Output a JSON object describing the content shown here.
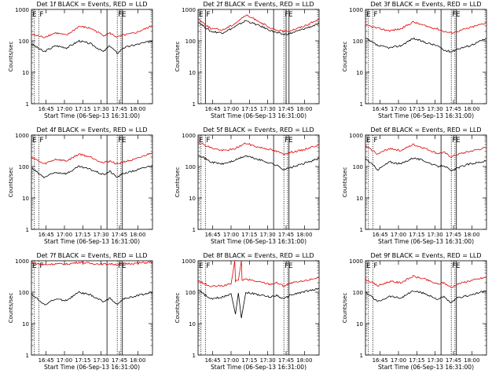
{
  "figure": {
    "xlabel": "Start Time (06-Sep-13 16:31:00)",
    "ylabel": "Counts/sec",
    "x_tick_labels": [
      "16:45",
      "17:00",
      "17:15",
      "17:30",
      "17:45",
      "18:00"
    ],
    "y_tick_labels": [
      "1",
      "10",
      "100",
      "1000"
    ],
    "colors": {
      "events": "#000000",
      "lld": "#e00000"
    }
  },
  "chart_data": [
    {
      "type": "line",
      "title": "Det 1f BLACK = Events, RED = LLD",
      "xlabel": "Start Time (06-Sep-13 16:31:00)",
      "ylabel": "Counts/sec",
      "xlim": [
        16.55,
        18.2
      ],
      "ylim": [
        1,
        1000
      ],
      "yscale": "log",
      "series": [
        {
          "name": "Events",
          "color": "#000000",
          "x": [
            16.55,
            16.72,
            16.88,
            17.03,
            17.2,
            17.36,
            17.53,
            17.62,
            17.72,
            17.8,
            17.97,
            18.2
          ],
          "y": [
            80,
            45,
            70,
            60,
            100,
            80,
            45,
            70,
            40,
            60,
            75,
            100
          ]
        },
        {
          "name": "LLD",
          "color": "#e00000",
          "x": [
            16.55,
            16.72,
            16.88,
            17.03,
            17.2,
            17.36,
            17.53,
            17.62,
            17.72,
            17.8,
            17.97,
            18.2
          ],
          "y": [
            160,
            130,
            180,
            150,
            290,
            250,
            150,
            175,
            130,
            150,
            180,
            300
          ]
        }
      ],
      "annotations": [
        {
          "label": "E",
          "x": 16.55
        },
        {
          "label": "F",
          "x": 16.65
        },
        {
          "label": "F",
          "x": 17.72
        },
        {
          "label": "E",
          "x": 17.77
        }
      ],
      "vlines_solid": [
        17.58,
        17.79
      ],
      "vlines_dotted": [
        16.59,
        16.65,
        17.72,
        17.77
      ]
    },
    {
      "type": "line",
      "title": "Det 2f BLACK = Events, RED = LLD",
      "xlabel": "Start Time (06-Sep-13 16:31:00)",
      "ylabel": "Counts/sec",
      "xlim": [
        16.55,
        18.2
      ],
      "ylim": [
        1,
        1000
      ],
      "yscale": "log",
      "series": [
        {
          "name": "Events",
          "color": "#000000",
          "x": [
            16.55,
            16.72,
            16.88,
            17.03,
            17.2,
            17.36,
            17.53,
            17.62,
            17.72,
            17.8,
            17.97,
            18.2
          ],
          "y": [
            400,
            200,
            180,
            260,
            440,
            320,
            220,
            180,
            160,
            170,
            230,
            350
          ]
        },
        {
          "name": "LLD",
          "color": "#e00000",
          "x": [
            16.55,
            16.72,
            16.88,
            17.03,
            17.2,
            17.36,
            17.53,
            17.62,
            17.72,
            17.8,
            17.97,
            18.2
          ],
          "y": [
            500,
            250,
            220,
            330,
            650,
            450,
            250,
            220,
            200,
            210,
            280,
            480
          ]
        }
      ],
      "annotations": [
        {
          "label": "E",
          "x": 16.55
        },
        {
          "label": "F",
          "x": 16.65
        },
        {
          "label": "F",
          "x": 17.72
        },
        {
          "label": "E",
          "x": 17.77
        }
      ],
      "vlines_solid": [
        16.65,
        17.58,
        17.75,
        17.79
      ],
      "vlines_dotted": [
        16.59,
        17.72
      ]
    },
    {
      "type": "line",
      "title": "Det 3f BLACK = Events, RED = LLD",
      "xlabel": "Start Time (06-Sep-13 16:31:00)",
      "ylabel": "Counts/sec",
      "xlim": [
        16.55,
        18.2
      ],
      "ylim": [
        1,
        1000
      ],
      "yscale": "log",
      "series": [
        {
          "name": "Events",
          "color": "#000000",
          "x": [
            16.55,
            16.72,
            16.88,
            17.03,
            17.2,
            17.36,
            17.53,
            17.62,
            17.72,
            17.8,
            17.97,
            18.2
          ],
          "y": [
            120,
            70,
            60,
            70,
            120,
            90,
            70,
            50,
            45,
            55,
            70,
            120
          ]
        },
        {
          "name": "LLD",
          "color": "#e00000",
          "x": [
            16.55,
            16.72,
            16.88,
            17.03,
            17.2,
            17.36,
            17.53,
            17.62,
            17.72,
            17.8,
            17.97,
            18.2
          ],
          "y": [
            320,
            250,
            210,
            240,
            400,
            300,
            240,
            200,
            180,
            200,
            260,
            380
          ]
        }
      ],
      "annotations": [
        {
          "label": "E",
          "x": 16.55
        },
        {
          "label": "F",
          "x": 16.65
        },
        {
          "label": "F",
          "x": 17.72
        },
        {
          "label": "E",
          "x": 17.77
        }
      ],
      "vlines_solid": [
        17.58,
        17.79
      ],
      "vlines_dotted": [
        16.59,
        16.65,
        17.72,
        17.77
      ]
    },
    {
      "type": "line",
      "title": "Det 4f BLACK = Events, RED = LLD",
      "xlabel": "Start Time (06-Sep-13 16:31:00)",
      "ylabel": "Counts/sec",
      "xlim": [
        16.55,
        18.2
      ],
      "ylim": [
        1,
        1000
      ],
      "yscale": "log",
      "series": [
        {
          "name": "Events",
          "color": "#000000",
          "x": [
            16.55,
            16.72,
            16.88,
            17.03,
            17.2,
            17.36,
            17.53,
            17.62,
            17.72,
            17.8,
            17.97,
            18.2
          ],
          "y": [
            90,
            45,
            65,
            60,
            100,
            80,
            55,
            70,
            45,
            60,
            75,
            110
          ]
        },
        {
          "name": "LLD",
          "color": "#e00000",
          "x": [
            16.55,
            16.72,
            16.88,
            17.03,
            17.2,
            17.36,
            17.53,
            17.62,
            17.72,
            17.8,
            17.97,
            18.2
          ],
          "y": [
            200,
            120,
            170,
            150,
            250,
            200,
            130,
            150,
            120,
            140,
            170,
            280
          ]
        }
      ],
      "annotations": [
        {
          "label": "E",
          "x": 16.55
        },
        {
          "label": "F",
          "x": 16.65
        },
        {
          "label": "F",
          "x": 17.72
        },
        {
          "label": "E",
          "x": 17.77
        }
      ],
      "vlines_solid": [
        17.58,
        17.79
      ],
      "vlines_dotted": [
        16.59,
        16.65,
        17.72,
        17.77
      ]
    },
    {
      "type": "line",
      "title": "Det 5f BLACK = Events, RED = LLD",
      "xlabel": "Start Time (06-Sep-13 16:31:00)",
      "ylabel": "Counts/sec",
      "xlim": [
        16.55,
        18.2
      ],
      "ylim": [
        1,
        1000
      ],
      "yscale": "log",
      "series": [
        {
          "name": "Events",
          "color": "#000000",
          "x": [
            16.55,
            16.72,
            16.88,
            17.03,
            17.2,
            17.36,
            17.53,
            17.62,
            17.72,
            17.8,
            17.97,
            18.2
          ],
          "y": [
            250,
            140,
            120,
            150,
            220,
            170,
            130,
            110,
            80,
            90,
            120,
            180
          ]
        },
        {
          "name": "LLD",
          "color": "#e00000",
          "x": [
            16.55,
            16.72,
            16.88,
            17.03,
            17.2,
            17.36,
            17.53,
            17.62,
            17.72,
            17.8,
            17.97,
            18.2
          ],
          "y": [
            600,
            400,
            320,
            350,
            550,
            420,
            350,
            300,
            250,
            280,
            330,
            500
          ]
        }
      ],
      "annotations": [
        {
          "label": "E",
          "x": 16.55
        },
        {
          "label": "F",
          "x": 16.65
        },
        {
          "label": "F",
          "x": 17.72
        },
        {
          "label": "E",
          "x": 17.77
        }
      ],
      "vlines_solid": [
        17.58,
        17.79
      ],
      "vlines_dotted": [
        16.59,
        16.65,
        17.72,
        17.77
      ]
    },
    {
      "type": "line",
      "title": "Det 6f BLACK = Events, RED = LLD",
      "xlabel": "Start Time (06-Sep-13 16:31:00)",
      "ylabel": "Counts/sec",
      "xlim": [
        16.55,
        18.2
      ],
      "ylim": [
        1,
        1000
      ],
      "yscale": "log",
      "series": [
        {
          "name": "Events",
          "color": "#000000",
          "x": [
            16.55,
            16.72,
            16.88,
            17.03,
            17.2,
            17.36,
            17.53,
            17.62,
            17.72,
            17.8,
            17.97,
            18.2
          ],
          "y": [
            180,
            80,
            140,
            120,
            190,
            150,
            100,
            110,
            70,
            90,
            120,
            150
          ]
        },
        {
          "name": "LLD",
          "color": "#e00000",
          "x": [
            16.55,
            16.72,
            16.88,
            17.03,
            17.2,
            17.36,
            17.53,
            17.62,
            17.72,
            17.8,
            17.97,
            18.2
          ],
          "y": [
            450,
            250,
            380,
            320,
            500,
            380,
            260,
            280,
            200,
            240,
            300,
            400
          ]
        }
      ],
      "annotations": [
        {
          "label": "E",
          "x": 16.55
        },
        {
          "label": "F",
          "x": 16.65
        },
        {
          "label": "F",
          "x": 17.72
        },
        {
          "label": "E",
          "x": 17.77
        }
      ],
      "vlines_solid": [
        17.58,
        17.79
      ],
      "vlines_dotted": [
        16.59,
        16.65,
        17.72,
        17.77
      ]
    },
    {
      "type": "line",
      "title": "Det 7f BLACK = Events, RED = LLD",
      "xlabel": "Start Time (06-Sep-13 16:31:00)",
      "ylabel": "Counts/sec",
      "xlim": [
        16.55,
        18.2
      ],
      "ylim": [
        1,
        1000
      ],
      "yscale": "log",
      "series": [
        {
          "name": "Events",
          "color": "#000000",
          "x": [
            16.55,
            16.72,
            16.88,
            17.03,
            17.2,
            17.36,
            17.53,
            17.62,
            17.72,
            17.8,
            17.97,
            18.2
          ],
          "y": [
            90,
            40,
            60,
            55,
            100,
            80,
            50,
            65,
            40,
            60,
            75,
            100
          ]
        },
        {
          "name": "LLD",
          "color": "#e00000",
          "x": [
            16.55,
            16.72,
            16.88,
            17.03,
            17.2,
            17.36,
            17.53,
            17.62,
            17.72,
            17.8,
            17.97,
            18.2
          ],
          "y": [
            850,
            750,
            800,
            780,
            900,
            820,
            780,
            800,
            760,
            800,
            830,
            900
          ]
        }
      ],
      "annotations": [
        {
          "label": "E",
          "x": 16.55
        },
        {
          "label": "F",
          "x": 16.65
        },
        {
          "label": "F",
          "x": 17.72
        },
        {
          "label": "E",
          "x": 17.77
        }
      ],
      "vlines_solid": [
        17.58,
        17.79
      ],
      "vlines_dotted": [
        16.59,
        16.65,
        17.72,
        17.77
      ]
    },
    {
      "type": "line",
      "title": "Det 8f BLACK = Events, RED = LLD",
      "xlabel": "Start Time (06-Sep-13 16:31:00)",
      "ylabel": "Counts/sec",
      "xlim": [
        16.55,
        18.2
      ],
      "ylim": [
        1,
        1000
      ],
      "yscale": "log",
      "series": [
        {
          "name": "Events",
          "color": "#000000",
          "x": [
            16.55,
            16.72,
            16.88,
            17.0,
            17.06,
            17.1,
            17.14,
            17.2,
            17.36,
            17.53,
            17.62,
            17.72,
            17.8,
            17.97,
            18.2
          ],
          "y": [
            120,
            60,
            70,
            90,
            20,
            95,
            15,
            100,
            85,
            70,
            80,
            60,
            80,
            100,
            130
          ]
        },
        {
          "name": "LLD",
          "color": "#e00000",
          "x": [
            16.55,
            16.72,
            16.88,
            17.0,
            17.05,
            17.06,
            17.1,
            17.14,
            17.15,
            17.2,
            17.36,
            17.53,
            17.62,
            17.72,
            17.8,
            17.97,
            18.2
          ],
          "y": [
            230,
            150,
            160,
            180,
            1000,
            230,
            240,
            1000,
            240,
            260,
            220,
            180,
            200,
            160,
            190,
            220,
            300
          ]
        }
      ],
      "annotations": [
        {
          "label": "E",
          "x": 16.55
        },
        {
          "label": "F",
          "x": 16.65
        },
        {
          "label": "F",
          "x": 17.72
        },
        {
          "label": "E",
          "x": 17.77
        }
      ],
      "vlines_solid": [
        17.58,
        17.79
      ],
      "vlines_dotted": [
        16.59,
        16.65,
        17.72,
        17.77
      ]
    },
    {
      "type": "line",
      "title": "Det 9f BLACK = Events, RED = LLD",
      "xlabel": "Start Time (06-Sep-13 16:31:00)",
      "ylabel": "Counts/sec",
      "xlim": [
        16.55,
        18.2
      ],
      "ylim": [
        1,
        1000
      ],
      "yscale": "log",
      "series": [
        {
          "name": "Events",
          "color": "#000000",
          "x": [
            16.55,
            16.72,
            16.88,
            17.03,
            17.2,
            17.36,
            17.53,
            17.62,
            17.72,
            17.8,
            17.97,
            18.2
          ],
          "y": [
            100,
            50,
            75,
            65,
            110,
            90,
            60,
            70,
            45,
            65,
            80,
            110
          ]
        },
        {
          "name": "LLD",
          "color": "#e00000",
          "x": [
            16.55,
            16.72,
            16.88,
            17.03,
            17.2,
            17.36,
            17.53,
            17.62,
            17.72,
            17.8,
            17.97,
            18.2
          ],
          "y": [
            260,
            160,
            220,
            200,
            320,
            260,
            180,
            200,
            140,
            180,
            230,
            300
          ]
        }
      ],
      "annotations": [
        {
          "label": "E",
          "x": 16.55
        },
        {
          "label": "F",
          "x": 16.65
        },
        {
          "label": "F",
          "x": 17.72
        },
        {
          "label": "E",
          "x": 17.77
        }
      ],
      "vlines_solid": [
        17.58,
        17.79
      ],
      "vlines_dotted": [
        16.59,
        16.65,
        17.72,
        17.77
      ]
    }
  ]
}
